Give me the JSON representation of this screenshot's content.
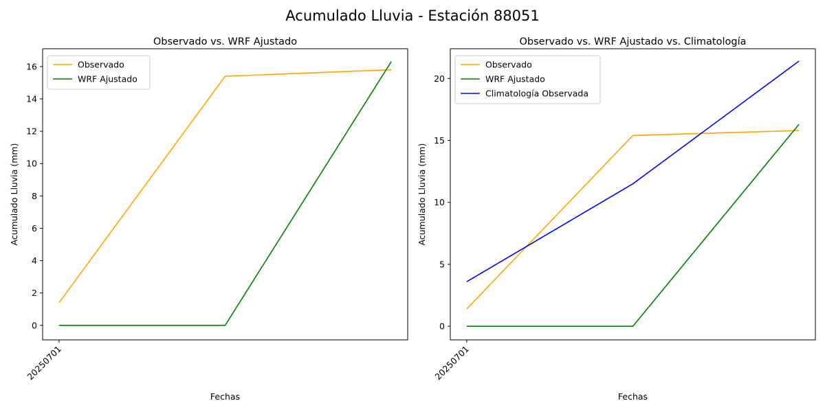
{
  "figure": {
    "title": "Acumulado Lluvia - Estación 88051"
  },
  "chart_data": [
    {
      "type": "line",
      "title": "Observado vs. WRF Ajustado",
      "xlabel": "Fechas",
      "ylabel": "Acumulado Lluvia (mm)",
      "x_tick_labels": [
        "20250701",
        "",
        ""
      ],
      "ylim": [
        -0.9,
        17.1
      ],
      "yticks": [
        0,
        2,
        4,
        6,
        8,
        10,
        12,
        14,
        16
      ],
      "legend_position": "upper-left",
      "grid": false,
      "series": [
        {
          "name": "Observado",
          "color": "#ffa500",
          "values": [
            1.4,
            15.4,
            15.8
          ]
        },
        {
          "name": "WRF Ajustado",
          "color": "#008000",
          "values": [
            0.0,
            0.0,
            16.3
          ]
        }
      ]
    },
    {
      "type": "line",
      "title": "Observado vs. WRF Ajustado vs. Climatología",
      "xlabel": "Fechas",
      "ylabel": "Acumulado Lluvia (mm)",
      "x_tick_labels": [
        "20250701",
        "",
        ""
      ],
      "ylim": [
        -1.1,
        22.4
      ],
      "yticks": [
        0,
        5,
        10,
        15,
        20
      ],
      "legend_position": "upper-left",
      "grid": false,
      "series": [
        {
          "name": "Observado",
          "color": "#ffa500",
          "values": [
            1.4,
            15.4,
            15.8
          ]
        },
        {
          "name": "WRF Ajustado",
          "color": "#008000",
          "values": [
            0.0,
            0.0,
            16.3
          ]
        },
        {
          "name": "Climatología Observada",
          "color": "#0000ff",
          "values": [
            3.6,
            11.5,
            21.4
          ]
        }
      ]
    }
  ]
}
